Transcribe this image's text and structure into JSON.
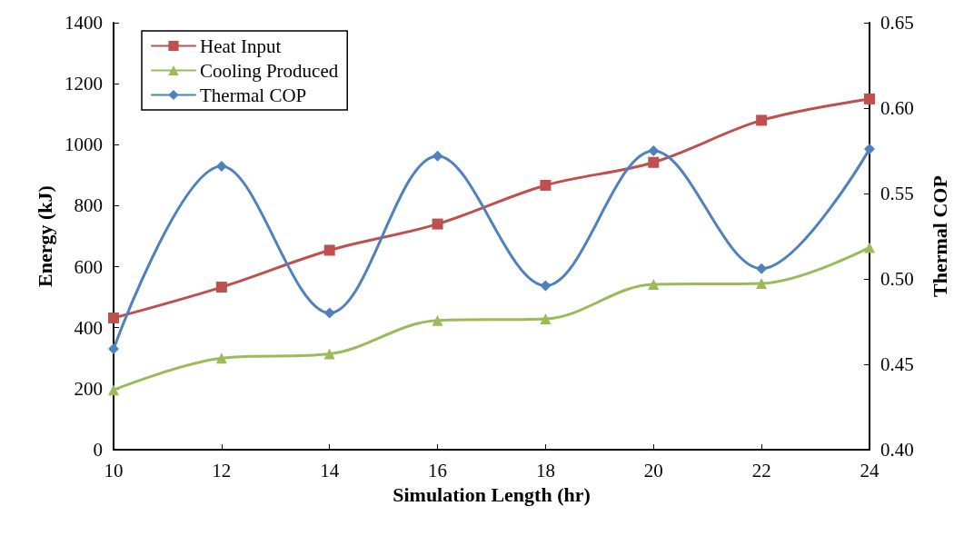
{
  "chart_data": {
    "type": "line",
    "xlabel": "Simulation Length (hr)",
    "ylabel": "Energy (kJ)",
    "y2label": "Thermal COP",
    "x": [
      10,
      12,
      14,
      16,
      18,
      20,
      22,
      24
    ],
    "series": [
      {
        "name": "Heat Input",
        "color": "#c0504d",
        "marker": "square",
        "values": [
          432,
          533,
          654,
          740,
          867,
          942,
          1080,
          1150
        ]
      },
      {
        "name": "Cooling Produced",
        "color": "#9bbb59",
        "marker": "triangle",
        "values": [
          196,
          300,
          314,
          424,
          429,
          542,
          545,
          663
        ]
      },
      {
        "name": "Thermal COP",
        "color": "#4f81bd",
        "marker": "diamond",
        "axis": "y2",
        "values": [
          0.459,
          0.566,
          0.48,
          0.572,
          0.496,
          0.575,
          0.506,
          0.576
        ]
      }
    ],
    "xlim": [
      10,
      24
    ],
    "xticks": [
      10,
      12,
      14,
      16,
      18,
      20,
      22,
      24
    ],
    "ylim": [
      0,
      1400
    ],
    "yticks": [
      0,
      200,
      400,
      600,
      800,
      1000,
      1200,
      1400
    ],
    "y2lim": [
      0.4,
      0.65
    ],
    "y2ticks": [
      {
        "value": 0.4,
        "label": "0.40"
      },
      {
        "value": 0.45,
        "label": "0.45"
      },
      {
        "value": 0.5,
        "label": "0.50"
      },
      {
        "value": 0.55,
        "label": "0.55"
      },
      {
        "value": 0.6,
        "label": "0.60"
      },
      {
        "value": 0.65,
        "label": "0.65"
      }
    ],
    "grid": false,
    "legend": "top left",
    "line_style": "solid"
  }
}
